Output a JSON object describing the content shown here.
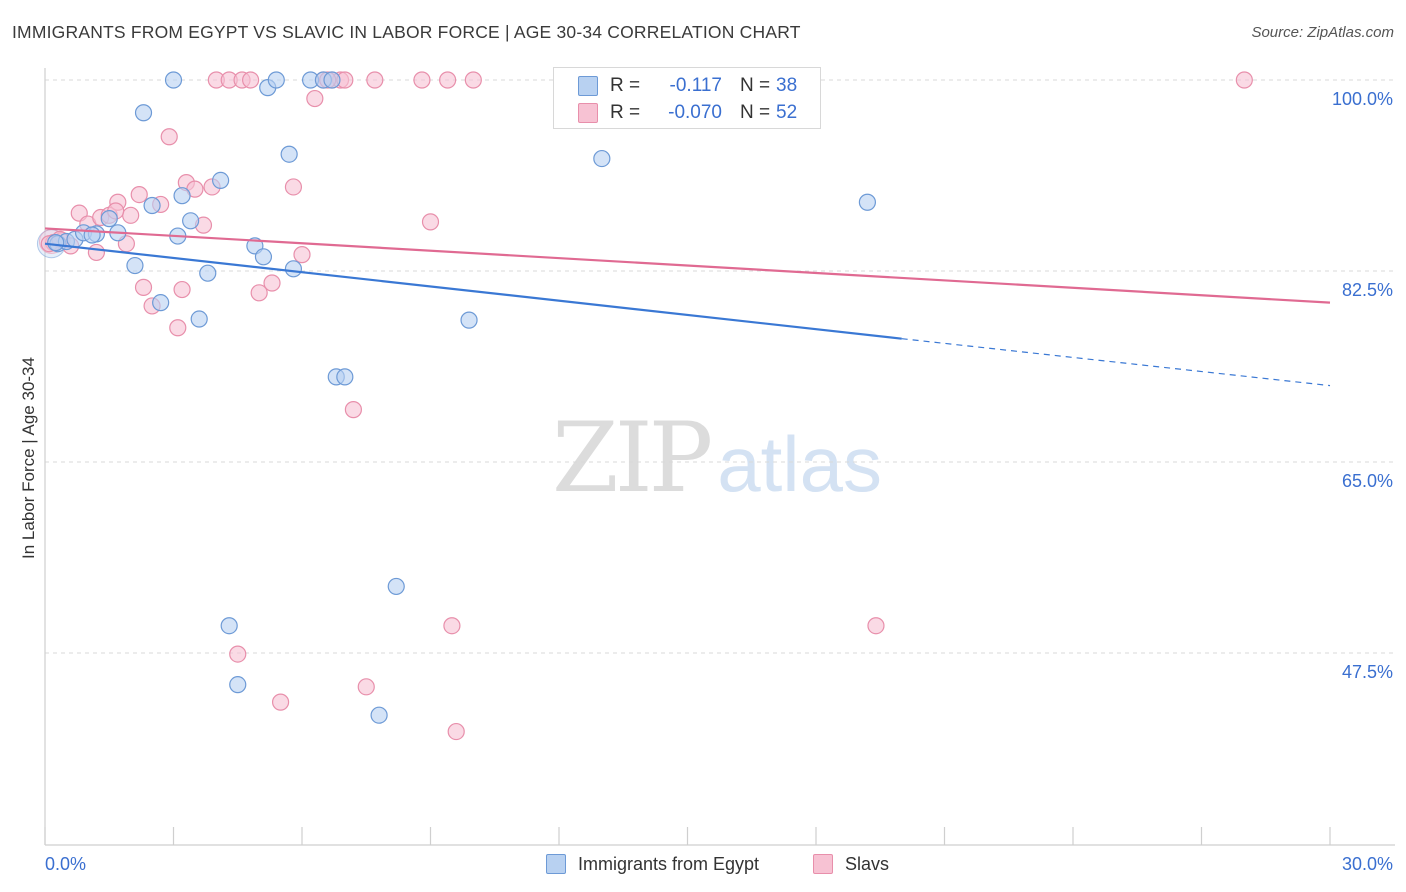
{
  "title": "IMMIGRANTS FROM EGYPT VS SLAVIC IN LABOR FORCE | AGE 30-34 CORRELATION CHART",
  "source": "Source: ZipAtlas.com",
  "watermark": {
    "zip": "ZIP",
    "atlas": "atlas"
  },
  "legend": {
    "r_label": "R =",
    "n_label": "N =",
    "rows": [
      {
        "series": "Immigrants from Egypt",
        "r": "-0.117",
        "n": "38"
      },
      {
        "series": "Slavs",
        "r": "-0.070",
        "n": "52"
      }
    ]
  },
  "colors": {
    "egypt_fill": "#b8d1f1",
    "egypt_stroke": "#6d9ad6",
    "egypt_line": "#3a78d4",
    "slavs_fill": "#f7c2d3",
    "slavs_stroke": "#e88fab",
    "slavs_line": "#e06a92",
    "tick_text": "#3a6fd0",
    "grid": "#d9d9d9"
  },
  "chart_data": {
    "type": "scatter",
    "title": "IMMIGRANTS FROM EGYPT VS SLAVIC IN LABOR FORCE | AGE 30-34 CORRELATION CHART",
    "xlabel": "",
    "ylabel": "In Labor Force | Age 30-34",
    "xlim": [
      0,
      30
    ],
    "ylim": [
      31,
      101
    ],
    "x_tick_labels": [
      "0.0%",
      "30.0%"
    ],
    "y_ticks": [
      47.5,
      65.0,
      82.5,
      100.0
    ],
    "y_tick_labels": [
      "47.5%",
      "65.0%",
      "82.5%",
      "100.0%"
    ],
    "grid": true,
    "legend_position": "top-center",
    "series": [
      {
        "name": "Immigrants from Egypt",
        "points": [
          [
            0.3,
            85.0
          ],
          [
            0.5,
            85.2
          ],
          [
            0.7,
            85.4
          ],
          [
            0.9,
            86.0
          ],
          [
            1.2,
            85.9
          ],
          [
            1.5,
            87.3
          ],
          [
            1.7,
            86.0
          ],
          [
            2.1,
            83.0
          ],
          [
            2.3,
            97.0
          ],
          [
            2.5,
            88.5
          ],
          [
            2.7,
            79.6
          ],
          [
            3.0,
            100.0
          ],
          [
            3.1,
            85.7
          ],
          [
            3.2,
            89.4
          ],
          [
            3.4,
            87.1
          ],
          [
            3.6,
            78.1
          ],
          [
            3.8,
            82.3
          ],
          [
            4.1,
            90.8
          ],
          [
            4.3,
            50.0
          ],
          [
            4.5,
            44.6
          ],
          [
            4.9,
            84.8
          ],
          [
            5.1,
            83.8
          ],
          [
            5.2,
            99.3
          ],
          [
            5.4,
            100.0
          ],
          [
            5.7,
            93.2
          ],
          [
            5.8,
            82.7
          ],
          [
            6.2,
            100.0
          ],
          [
            6.5,
            100.0
          ],
          [
            6.7,
            100.0
          ],
          [
            6.8,
            72.8
          ],
          [
            7.0,
            72.8
          ],
          [
            7.8,
            41.8
          ],
          [
            8.2,
            53.6
          ],
          [
            9.9,
            78.0
          ],
          [
            13.0,
            92.8
          ],
          [
            19.2,
            88.8
          ],
          [
            0.25,
            85.1
          ],
          [
            1.1,
            85.8
          ]
        ],
        "trend": {
          "x0": 0,
          "y0": 85.0,
          "x1": 20.0,
          "y1": 76.3,
          "dashed_to_x": 30.0,
          "dashed_to_y": 72.0
        }
      },
      {
        "name": "Slavs",
        "points": [
          [
            0.2,
            85.1
          ],
          [
            0.4,
            85.3
          ],
          [
            0.6,
            84.8
          ],
          [
            0.8,
            87.8
          ],
          [
            1.0,
            86.8
          ],
          [
            1.2,
            84.2
          ],
          [
            1.3,
            87.4
          ],
          [
            1.5,
            87.6
          ],
          [
            1.7,
            88.8
          ],
          [
            1.9,
            85.0
          ],
          [
            2.0,
            87.6
          ],
          [
            2.2,
            89.5
          ],
          [
            2.3,
            81.0
          ],
          [
            2.5,
            79.3
          ],
          [
            2.7,
            88.6
          ],
          [
            2.9,
            94.8
          ],
          [
            3.1,
            77.3
          ],
          [
            3.2,
            80.8
          ],
          [
            3.3,
            90.6
          ],
          [
            3.5,
            90.0
          ],
          [
            3.7,
            86.7
          ],
          [
            3.9,
            90.2
          ],
          [
            4.0,
            100.0
          ],
          [
            4.3,
            100.0
          ],
          [
            4.5,
            47.4
          ],
          [
            4.6,
            100.0
          ],
          [
            4.8,
            100.0
          ],
          [
            5.0,
            80.5
          ],
          [
            5.3,
            81.4
          ],
          [
            5.5,
            43.0
          ],
          [
            5.8,
            90.2
          ],
          [
            6.0,
            84.0
          ],
          [
            6.3,
            98.3
          ],
          [
            6.5,
            100.0
          ],
          [
            6.7,
            100.0
          ],
          [
            6.9,
            100.0
          ],
          [
            7.0,
            100.0
          ],
          [
            7.2,
            69.8
          ],
          [
            7.5,
            44.4
          ],
          [
            7.7,
            100.0
          ],
          [
            8.8,
            100.0
          ],
          [
            9.0,
            87.0
          ],
          [
            9.4,
            100.0
          ],
          [
            9.5,
            50.0
          ],
          [
            9.6,
            40.3
          ],
          [
            10.0,
            100.0
          ],
          [
            19.4,
            50.0
          ],
          [
            28.0,
            100.0
          ],
          [
            0.1,
            85.0
          ],
          [
            0.35,
            85.4
          ],
          [
            1.65,
            88.0
          ],
          [
            6.6,
            100.0
          ]
        ],
        "trend": {
          "x0": 0,
          "y0": 86.4,
          "x1": 30.0,
          "y1": 79.6
        }
      }
    ]
  }
}
